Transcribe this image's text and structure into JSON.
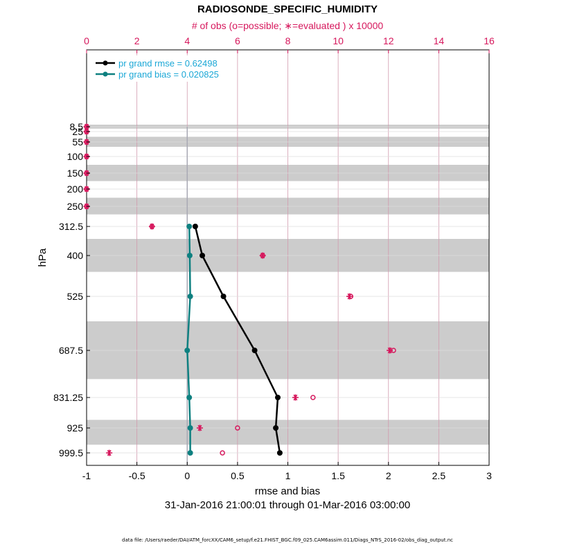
{
  "chart_data": {
    "type": "line",
    "title": "RADIOSONDE_SPECIFIC_HUMIDITY",
    "top_axis_label": "# of obs (o=possible; ∗=evaluated ) x 10000",
    "top_xlim": [
      0,
      16
    ],
    "top_ticks": [
      "0",
      "2",
      "4",
      "6",
      "8",
      "10",
      "12",
      "14",
      "16"
    ],
    "xlabel": "rmse and bias",
    "date_range": "31-Jan-2016 21:00:01 through 01-Mar-2016 03:00:00",
    "xlim": [
      -1,
      3
    ],
    "x_ticks": [
      "-1",
      "-0.5",
      "0",
      "0.5",
      "1",
      "1.5",
      "2",
      "2.5",
      "3"
    ],
    "ylabel": "hPa",
    "levels": [
      "8.5",
      "25",
      "55",
      "100",
      "150",
      "200",
      "250",
      "312.5",
      "400",
      "525",
      "687.5",
      "831.25",
      "925",
      "999.5"
    ],
    "shaded_bands": [
      [
        "0",
        "15"
      ],
      [
        "40",
        "70"
      ],
      [
        "125",
        "175"
      ],
      [
        "225",
        "275"
      ],
      [
        "350",
        "450"
      ],
      [
        "600",
        "775"
      ],
      [
        "900",
        "975"
      ]
    ],
    "series": [
      {
        "name": "pr grand rmse = 0.62498",
        "color": "#000000",
        "levels": [
          "312.5",
          "400",
          "525",
          "687.5",
          "831.25",
          "925",
          "999.5"
        ],
        "values": [
          0.08,
          0.15,
          0.36,
          0.67,
          0.9,
          0.88,
          0.92
        ]
      },
      {
        "name": "pr grand bias = 0.020825",
        "color": "#0e8080",
        "levels": [
          "312.5",
          "400",
          "525",
          "687.5",
          "831.25",
          "925",
          "999.5"
        ],
        "values": [
          0.02,
          0.025,
          0.03,
          0.0,
          0.02,
          0.03,
          0.03
        ]
      }
    ],
    "obs_possible": {
      "levels": [
        "8.5",
        "25",
        "55",
        "100",
        "150",
        "200",
        "250",
        "312.5",
        "400",
        "525",
        "687.5",
        "831.25",
        "925",
        "999.5"
      ],
      "values": [
        0,
        0,
        0,
        0,
        0,
        0,
        0,
        2.6,
        7.0,
        10.5,
        12.2,
        9.0,
        6.0,
        5.4
      ]
    },
    "obs_evaluated": {
      "levels": [
        "8.5",
        "25",
        "55",
        "100",
        "150",
        "200",
        "250",
        "312.5",
        "400",
        "525",
        "687.5",
        "831.25",
        "925",
        "999.5"
      ],
      "values": [
        0,
        0,
        0,
        0,
        0,
        0,
        0,
        2.6,
        7.0,
        10.45,
        12.05,
        8.3,
        4.5,
        0.9
      ]
    }
  },
  "footer_text": "data file: /Users/raeder/DAI/ATM_forcXX/CAM6_setup/f.e21.FHIST_BGC.f09_025.CAM6assim.011/Diags_NTrS_2016-02/obs_diag_output.nc"
}
